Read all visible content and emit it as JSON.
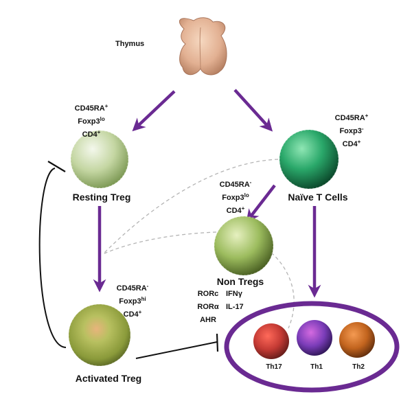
{
  "thymus": {
    "label": "Thymus"
  },
  "resting_treg": {
    "label": "Resting Treg",
    "markers": [
      {
        "base": "CD45RA",
        "sup": "+"
      },
      {
        "base": "Foxp3",
        "sup": "lo"
      },
      {
        "base": "CD4",
        "sup": "+"
      }
    ],
    "color": "#c4d6a2"
  },
  "naive_t": {
    "label": "Naïve T Cells",
    "markers": [
      {
        "base": "CD45RA",
        "sup": "+"
      },
      {
        "base": "Foxp3",
        "sup": "-"
      },
      {
        "base": "CD4",
        "sup": "+"
      }
    ],
    "color": "#2aa86a"
  },
  "non_tregs": {
    "label": "Non Tregs",
    "markers": [
      {
        "base": "CD45RA",
        "sup": "-"
      },
      {
        "base": "Foxp3",
        "sup": "lo"
      },
      {
        "base": "CD4",
        "sup": "+"
      }
    ],
    "factors_left": [
      "RORc",
      "RORα",
      "AHR"
    ],
    "factors_right": [
      "IFNγ",
      "IL-17"
    ],
    "color": "#9cbc5e"
  },
  "activated_treg": {
    "label": "Activated Treg",
    "markers": [
      {
        "base": "CD45RA",
        "sup": "-"
      },
      {
        "base": "Foxp3",
        "sup": "hi"
      },
      {
        "base": "CD4",
        "sup": "+"
      }
    ],
    "color": "#9aaa44"
  },
  "effector_cells": [
    {
      "label": "Th17",
      "color": "#c43a34"
    },
    {
      "label": "Th1",
      "color": "#7a3cb8"
    },
    {
      "label": "Th2",
      "color": "#c2641e"
    }
  ],
  "colors": {
    "arrow": "#6a2a92",
    "ellipse": "#6a2a92",
    "inhibit": "#111111",
    "dashed": "#b4b4b4"
  }
}
